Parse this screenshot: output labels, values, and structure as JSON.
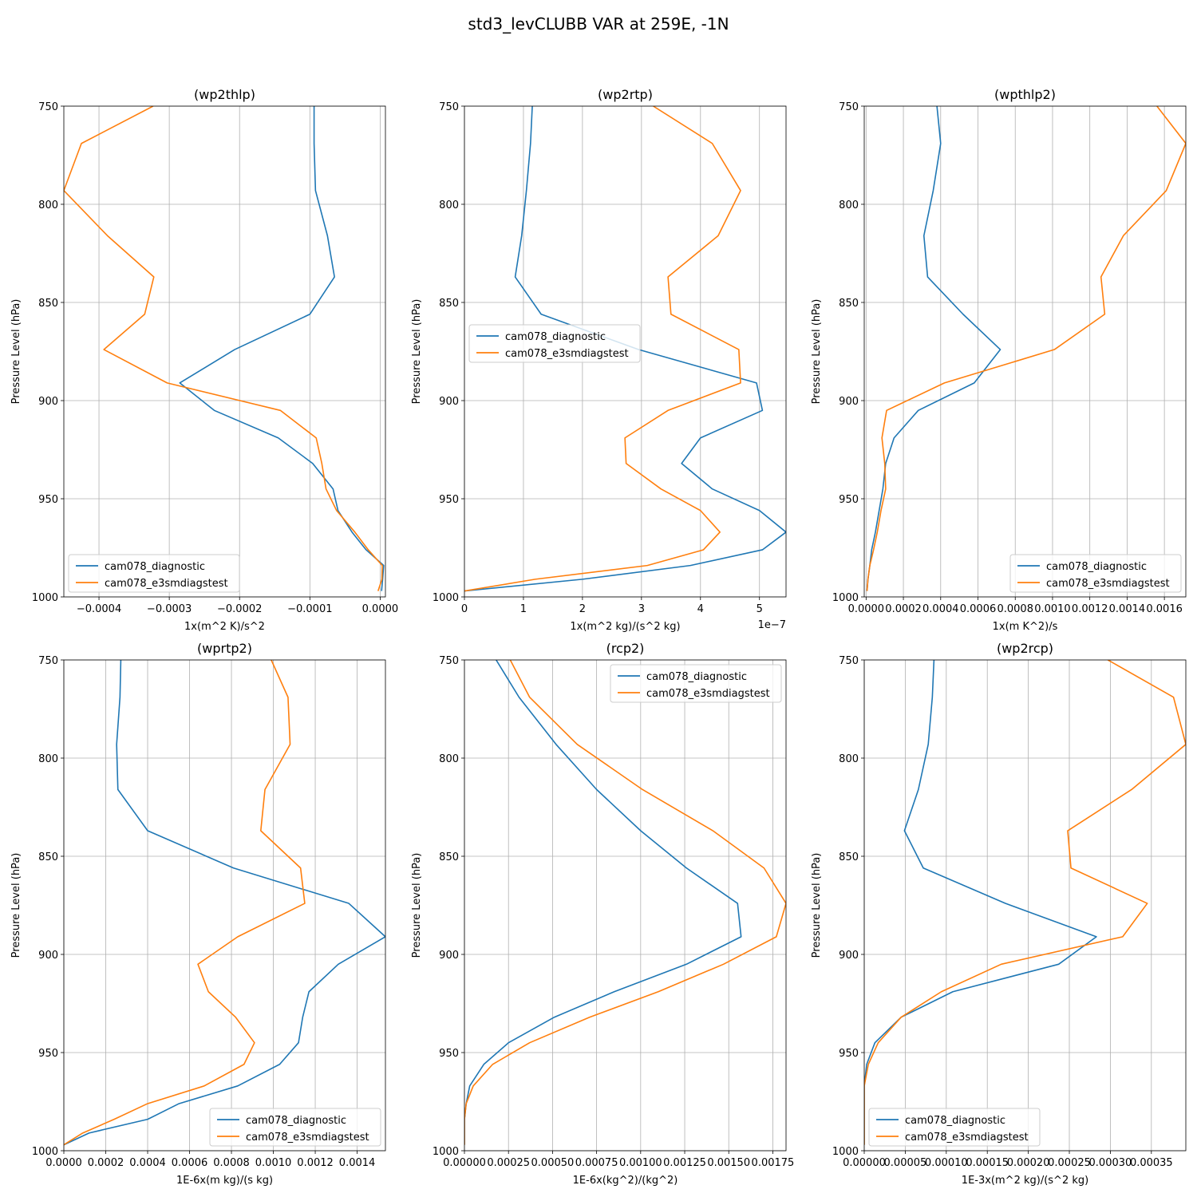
{
  "figure": {
    "title": "std3_levCLUBB VAR at 259E, -1N"
  },
  "colors": {
    "cam078_diagnostic": "#1f77b4",
    "cam078_e3smdiagstest": "#ff7f0e"
  },
  "chart_data": [
    {
      "type": "line",
      "title": "(wp2thlp)",
      "xlabel": "1x(m^2 K)/s^2",
      "ylabel": "Pressure Level (hPa)",
      "xlim": [
        -0.00045,
        7.5e-06
      ],
      "ylim": [
        1000,
        750
      ],
      "xticks": [
        -0.0004,
        -0.0003,
        -0.0002,
        -0.0001,
        0.0
      ],
      "xtick_labels": [
        "−0.0004",
        "−0.0003",
        "−0.0002",
        "−0.0001",
        "0.0000"
      ],
      "yticks": [
        750,
        800,
        850,
        900,
        950,
        1000
      ],
      "ytick_labels": [
        "750",
        "800",
        "850",
        "900",
        "950",
        "1000"
      ],
      "legend": "lower-left",
      "grid": true,
      "levels": [
        750,
        769,
        793,
        816,
        837,
        856,
        874,
        891,
        905,
        919,
        932,
        945,
        956,
        967,
        976,
        984,
        991,
        997
      ],
      "series": [
        {
          "name": "cam078_diagnostic",
          "values": [
            -9.4e-05,
            -9.4e-05,
            -9.2e-05,
            -7.5e-05,
            -6.5e-05,
            -0.0001,
            -0.000207,
            -0.000285,
            -0.000236,
            -0.000145,
            -9.6e-05,
            -6.7e-05,
            -6e-05,
            -4e-05,
            -2e-05,
            5e-06,
            3.5e-06,
            2e-06
          ]
        },
        {
          "name": "cam078_e3smdiagstest",
          "values": [
            -0.000323,
            -0.000425,
            -0.00045,
            -0.000388,
            -0.000322,
            -0.000335,
            -0.000393,
            -0.000303,
            -0.000142,
            -9.1e-05,
            -8.3e-05,
            -7.7e-05,
            -6.2e-05,
            -3.6e-05,
            -1.7e-05,
            3e-06,
            2.5e-06,
            -3e-06
          ]
        }
      ]
    },
    {
      "type": "line",
      "title": "(wp2rtp)",
      "xlabel": "1x(m^2 kg)/(s^2 kg)",
      "ylabel": "Pressure Level (hPa)",
      "offset_text": "1e−7",
      "xlim": [
        0,
        5.45
      ],
      "ylim": [
        1000,
        750
      ],
      "xticks": [
        0,
        1,
        2,
        3,
        4,
        5
      ],
      "xtick_labels": [
        "0",
        "1",
        "2",
        "3",
        "4",
        "5"
      ],
      "yticks": [
        750,
        800,
        850,
        900,
        950,
        1000
      ],
      "ytick_labels": [
        "750",
        "800",
        "850",
        "900",
        "950",
        "1000"
      ],
      "legend": "center-left",
      "grid": true,
      "levels": [
        750,
        769,
        793,
        816,
        837,
        856,
        874,
        891,
        905,
        919,
        932,
        945,
        956,
        967,
        976,
        984,
        991,
        997
      ],
      "series": [
        {
          "name": "cam078_diagnostic",
          "values": [
            1.15,
            1.12,
            1.05,
            0.97,
            0.86,
            1.3,
            2.95,
            4.95,
            5.05,
            4.0,
            3.68,
            4.2,
            5.0,
            5.45,
            5.05,
            3.83,
            2.0,
            0.0
          ]
        },
        {
          "name": "cam078_e3smdiagstest",
          "values": [
            3.2,
            4.2,
            4.68,
            4.3,
            3.45,
            3.5,
            4.65,
            4.68,
            3.45,
            2.72,
            2.74,
            3.33,
            4.0,
            4.33,
            4.05,
            3.1,
            1.2,
            0.0
          ]
        }
      ]
    },
    {
      "type": "line",
      "title": "(wpthlp2)",
      "xlabel": "1x(m K^2)/s",
      "ylabel": "Pressure Level (hPa)",
      "xlim": [
        -1e-05,
        0.001715
      ],
      "ylim": [
        1000,
        750
      ],
      "xticks": [
        0.0,
        0.0002,
        0.0004,
        0.0006,
        0.0008,
        0.001,
        0.0012,
        0.0014,
        0.0016
      ],
      "xtick_labels": [
        "0.0000",
        "0.0002",
        "0.0004",
        "0.0006",
        "0.0008",
        "0.0010",
        "0.0012",
        "0.0014",
        "0.0016"
      ],
      "yticks": [
        750,
        800,
        850,
        900,
        950,
        1000
      ],
      "ytick_labels": [
        "750",
        "800",
        "850",
        "900",
        "950",
        "1000"
      ],
      "legend": "lower-right",
      "grid": true,
      "levels": [
        750,
        769,
        793,
        816,
        837,
        856,
        874,
        891,
        905,
        919,
        932,
        945,
        956,
        967,
        976,
        984,
        991,
        997
      ],
      "series": [
        {
          "name": "cam078_diagnostic",
          "values": [
            0.00038,
            0.0004,
            0.00036,
            0.00031,
            0.00033,
            0.00052,
            0.00072,
            0.00058,
            0.00028,
            0.00015,
            0.000105,
            9e-05,
            7e-05,
            5e-05,
            3e-05,
            2e-05,
            1e-05,
            5e-06
          ]
        },
        {
          "name": "cam078_e3smdiagstest",
          "values": [
            0.00156,
            0.001715,
            0.00161,
            0.00138,
            0.00126,
            0.00128,
            0.00101,
            0.00042,
            0.00011,
            8.5e-05,
            0.0001,
            0.000105,
            8e-05,
            6e-05,
            4e-05,
            2e-05,
            1e-05,
            5e-06
          ]
        }
      ]
    },
    {
      "type": "line",
      "title": "(wprtp2)",
      "xlabel": "1E-6x(m kg)/(s kg)",
      "ylabel": "Pressure Level (hPa)",
      "xlim": [
        0,
        0.001535
      ],
      "ylim": [
        1000,
        750
      ],
      "xticks": [
        0.0,
        0.0002,
        0.0004,
        0.0006,
        0.0008,
        0.001,
        0.0012,
        0.0014
      ],
      "xtick_labels": [
        "0.0000",
        "0.0002",
        "0.0004",
        "0.0006",
        "0.0008",
        "0.0010",
        "0.0012",
        "0.0014"
      ],
      "yticks": [
        750,
        800,
        850,
        900,
        950,
        1000
      ],
      "ytick_labels": [
        "750",
        "800",
        "850",
        "900",
        "950",
        "1000"
      ],
      "legend": "lower-right",
      "grid": true,
      "levels": [
        750,
        769,
        793,
        816,
        837,
        856,
        874,
        891,
        905,
        919,
        932,
        945,
        956,
        967,
        976,
        984,
        991,
        997
      ],
      "series": [
        {
          "name": "cam078_diagnostic",
          "values": [
            0.000272,
            0.000268,
            0.000252,
            0.000258,
            0.0004,
            0.00081,
            0.00136,
            0.001535,
            0.00131,
            0.00117,
            0.00114,
            0.00112,
            0.00103,
            0.00083,
            0.00055,
            0.0004,
            0.00012,
            0.0
          ]
        },
        {
          "name": "cam078_e3smdiagstest",
          "values": [
            0.00099,
            0.00107,
            0.00108,
            0.00096,
            0.00094,
            0.00113,
            0.00115,
            0.00083,
            0.00064,
            0.00069,
            0.00082,
            0.00091,
            0.00086,
            0.00067,
            0.0004,
            0.00024,
            9e-05,
            0.0
          ]
        }
      ]
    },
    {
      "type": "line",
      "title": "(rcp2)",
      "xlabel": "1E-6x(kg^2)/(kg^2)",
      "ylabel": "Pressure Level (hPa)",
      "xlim": [
        0,
        0.001825
      ],
      "ylim": [
        1000,
        750
      ],
      "xticks": [
        0.0,
        0.00025,
        0.0005,
        0.00075,
        0.001,
        0.00125,
        0.0015,
        0.00175
      ],
      "xtick_labels": [
        "0.00000",
        "0.00025",
        "0.00050",
        "0.00075",
        "0.00100",
        "0.00125",
        "0.00150",
        "0.00175"
      ],
      "yticks": [
        750,
        800,
        850,
        900,
        950,
        1000
      ],
      "ytick_labels": [
        "750",
        "800",
        "850",
        "900",
        "950",
        "1000"
      ],
      "legend": "top-right",
      "grid": true,
      "levels": [
        750,
        769,
        793,
        816,
        837,
        856,
        874,
        891,
        905,
        919,
        932,
        945,
        956,
        967,
        976,
        984,
        991,
        997
      ],
      "series": [
        {
          "name": "cam078_diagnostic",
          "values": [
            0.00018,
            0.00031,
            0.00052,
            0.00075,
            0.001,
            0.00126,
            0.00155,
            0.00157,
            0.00126,
            0.00085,
            0.00051,
            0.00025,
            0.00011,
            3e-05,
            1e-05,
            0.0,
            0.0,
            0.0
          ]
        },
        {
          "name": "cam078_e3smdiagstest",
          "values": [
            0.00026,
            0.00037,
            0.00064,
            0.00101,
            0.00141,
            0.0017,
            0.001825,
            0.00177,
            0.00147,
            0.0011,
            0.00071,
            0.00037,
            0.00016,
            5e-05,
            1e-05,
            0.0,
            0.0,
            0.0
          ]
        }
      ]
    },
    {
      "type": "line",
      "title": "(wp2rcp)",
      "xlabel": "1E-3x(m^2 kg)/(s^2 kg)",
      "ylabel": "Pressure Level (hPa)",
      "xlim": [
        0,
        0.000392
      ],
      "ylim": [
        1000,
        750
      ],
      "xticks": [
        0.0,
        5e-05,
        0.0001,
        0.00015,
        0.0002,
        0.00025,
        0.0003,
        0.00035
      ],
      "xtick_labels": [
        "0.00000",
        "0.00005",
        "0.00010",
        "0.00015",
        "0.00020",
        "0.00025",
        "0.00030",
        "0.00035"
      ],
      "yticks": [
        750,
        800,
        850,
        900,
        950,
        1000
      ],
      "ytick_labels": [
        "750",
        "800",
        "850",
        "900",
        "950",
        "1000"
      ],
      "legend": "lower-left",
      "grid": true,
      "levels": [
        750,
        769,
        793,
        816,
        837,
        856,
        874,
        891,
        905,
        919,
        932,
        945,
        956,
        967,
        976,
        984,
        991,
        997
      ],
      "series": [
        {
          "name": "cam078_diagnostic",
          "values": [
            8.5e-05,
            8.3e-05,
            7.8e-05,
            6.6e-05,
            4.9e-05,
            7.2e-05,
            0.000172,
            0.000283,
            0.000237,
            0.000108,
            4.5e-05,
            1.3e-05,
            3e-06,
            0.0,
            0.0,
            0.0,
            0.0,
            0.0
          ]
        },
        {
          "name": "cam078_e3smdiagstest",
          "values": [
            0.000297,
            0.000377,
            0.000392,
            0.000326,
            0.000248,
            0.000252,
            0.000345,
            0.000315,
            0.000167,
            9.4e-05,
            4.5e-05,
            1.7e-05,
            5e-06,
            0.0,
            0.0,
            0.0,
            0.0,
            0.0
          ]
        }
      ]
    }
  ]
}
